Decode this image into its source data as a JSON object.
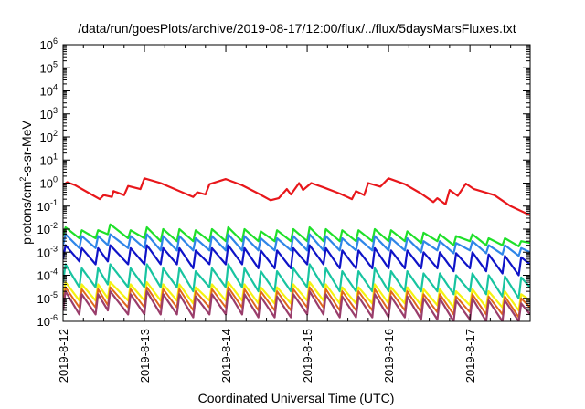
{
  "chart_data": {
    "type": "line",
    "title": "/data/run/goesPlots/archive/2019-08-17/12:00/flux/../flux/5daysMarsFluxes.txt",
    "xlabel": "Coordinated Universal Time (UTC)",
    "ylabel": {
      "base": "protons/cm",
      "sup": "2",
      "rest": "-s-sr-MeV"
    },
    "x_unit": "days since 2019-8-12 00:00 UTC",
    "xlim": [
      0,
      5.74
    ],
    "x_ticks": [
      {
        "value": 0,
        "label": "2019-8-12"
      },
      {
        "value": 1,
        "label": "2019-8-13"
      },
      {
        "value": 2,
        "label": "2019-8-14"
      },
      {
        "value": 3,
        "label": "2019-8-15"
      },
      {
        "value": 4,
        "label": "2019-8-16"
      },
      {
        "value": 5,
        "label": "2019-8-17"
      }
    ],
    "y_scale": "log",
    "ylim": [
      1e-06,
      1000000.0
    ],
    "y_ticks": [
      {
        "value": 1e-06,
        "base": "10",
        "exp": "-6"
      },
      {
        "value": 1e-05,
        "base": "10",
        "exp": "-5"
      },
      {
        "value": 0.0001,
        "base": "10",
        "exp": "-4"
      },
      {
        "value": 0.001,
        "base": "10",
        "exp": "-3"
      },
      {
        "value": 0.01,
        "base": "10",
        "exp": "-2"
      },
      {
        "value": 0.1,
        "base": "10",
        "exp": "-1"
      },
      {
        "value": 1,
        "base": "10",
        "exp": "0"
      },
      {
        "value": 10,
        "base": "10",
        "exp": "1"
      },
      {
        "value": 100,
        "base": "10",
        "exp": "2"
      },
      {
        "value": 1000,
        "base": "10",
        "exp": "3"
      },
      {
        "value": 10000,
        "base": "10",
        "exp": "4"
      },
      {
        "value": 100000,
        "base": "10",
        "exp": "5"
      },
      {
        "value": 1000000,
        "base": "10",
        "exp": "6"
      }
    ],
    "grid": false,
    "legend": "none",
    "series": [
      {
        "color": "#e8171b",
        "width": 2.2,
        "x": [
          0,
          0.05,
          0.15,
          0.3,
          0.45,
          0.5,
          0.6,
          0.62,
          0.75,
          0.8,
          0.95,
          1.0,
          1.2,
          1.4,
          1.6,
          1.65,
          1.75,
          1.8,
          2.0,
          2.2,
          2.4,
          2.55,
          2.65,
          2.75,
          2.8,
          2.9,
          2.95,
          3.05,
          3.2,
          3.4,
          3.55,
          3.6,
          3.7,
          3.75,
          3.9,
          4.0,
          4.2,
          4.4,
          4.55,
          4.6,
          4.7,
          4.75,
          4.85,
          4.95,
          5.05,
          5.3,
          5.5,
          5.74
        ],
        "y": [
          0.8,
          1.1,
          0.8,
          0.4,
          0.2,
          0.3,
          0.25,
          0.45,
          0.3,
          0.75,
          0.55,
          1.6,
          1.0,
          0.5,
          0.25,
          0.4,
          0.32,
          0.9,
          1.5,
          0.8,
          0.35,
          0.18,
          0.22,
          0.55,
          0.32,
          1.0,
          0.5,
          1.0,
          0.65,
          0.35,
          0.2,
          0.45,
          0.3,
          1.0,
          0.7,
          1.6,
          0.9,
          0.35,
          0.15,
          0.22,
          0.12,
          0.5,
          0.28,
          0.95,
          0.55,
          0.3,
          0.1,
          0.04
        ]
      },
      {
        "color": "#1fe02a",
        "width": 2.2,
        "x": [
          0,
          0.03,
          0.2,
          0.23,
          0.4,
          0.43,
          0.55,
          0.58,
          0.8,
          0.83,
          1.0,
          1.03,
          1.2,
          1.23,
          1.4,
          1.43,
          1.6,
          1.63,
          1.8,
          1.83,
          2.0,
          2.03,
          2.2,
          2.23,
          2.4,
          2.43,
          2.6,
          2.63,
          2.8,
          2.83,
          3.0,
          3.03,
          3.2,
          3.23,
          3.4,
          3.43,
          3.6,
          3.63,
          3.8,
          3.83,
          4.0,
          4.03,
          4.2,
          4.23,
          4.4,
          4.43,
          4.6,
          4.63,
          4.8,
          4.83,
          5.0,
          5.03,
          5.2,
          5.23,
          5.4,
          5.43,
          5.6,
          5.63,
          5.74
        ],
        "y": [
          0.005,
          0.012,
          0.004,
          0.009,
          0.004,
          0.009,
          0.006,
          0.016,
          0.004,
          0.009,
          0.004,
          0.012,
          0.003,
          0.01,
          0.003,
          0.01,
          0.003,
          0.009,
          0.003,
          0.01,
          0.003,
          0.012,
          0.003,
          0.01,
          0.003,
          0.008,
          0.003,
          0.009,
          0.003,
          0.01,
          0.003,
          0.012,
          0.003,
          0.01,
          0.003,
          0.009,
          0.003,
          0.009,
          0.003,
          0.01,
          0.003,
          0.009,
          0.003,
          0.008,
          0.0025,
          0.007,
          0.003,
          0.006,
          0.002,
          0.005,
          0.003,
          0.006,
          0.002,
          0.004,
          0.002,
          0.004,
          0.0018,
          0.003,
          0.0025
        ]
      },
      {
        "color": "#2f86e8",
        "width": 2.2,
        "x": [
          0,
          0.03,
          0.2,
          0.23,
          0.4,
          0.43,
          0.55,
          0.58,
          0.8,
          0.83,
          1.0,
          1.03,
          1.2,
          1.23,
          1.4,
          1.43,
          1.6,
          1.63,
          1.8,
          1.83,
          2.0,
          2.03,
          2.2,
          2.23,
          2.4,
          2.43,
          2.6,
          2.63,
          2.8,
          2.83,
          3.0,
          3.03,
          3.2,
          3.23,
          3.4,
          3.43,
          3.6,
          3.63,
          3.8,
          3.83,
          4.0,
          4.03,
          4.2,
          4.23,
          4.4,
          4.43,
          4.6,
          4.63,
          4.8,
          4.83,
          5.0,
          5.03,
          5.2,
          5.23,
          5.4,
          5.43,
          5.6,
          5.63,
          5.74
        ],
        "y": [
          0.002,
          0.006,
          0.0015,
          0.005,
          0.0015,
          0.005,
          0.002,
          0.006,
          0.0015,
          0.005,
          0.0015,
          0.006,
          0.0012,
          0.005,
          0.0012,
          0.005,
          0.0012,
          0.004,
          0.0012,
          0.005,
          0.0012,
          0.006,
          0.0012,
          0.005,
          0.0012,
          0.004,
          0.0012,
          0.004,
          0.0012,
          0.005,
          0.0012,
          0.006,
          0.0012,
          0.005,
          0.0012,
          0.004,
          0.0012,
          0.004,
          0.0012,
          0.005,
          0.0012,
          0.004,
          0.0012,
          0.004,
          0.001,
          0.003,
          0.0012,
          0.003,
          0.0009,
          0.0025,
          0.0012,
          0.003,
          0.0009,
          0.002,
          0.0008,
          0.002,
          0.0007,
          0.0015,
          0.001
        ]
      },
      {
        "color": "#0f13c8",
        "width": 2.2,
        "x": [
          0,
          0.03,
          0.2,
          0.23,
          0.4,
          0.43,
          0.55,
          0.58,
          0.8,
          0.83,
          1.0,
          1.03,
          1.2,
          1.23,
          1.4,
          1.43,
          1.6,
          1.63,
          1.8,
          1.83,
          2.0,
          2.03,
          2.2,
          2.23,
          2.4,
          2.43,
          2.6,
          2.63,
          2.8,
          2.83,
          3.0,
          3.03,
          3.2,
          3.23,
          3.4,
          3.43,
          3.6,
          3.63,
          3.8,
          3.83,
          4.0,
          4.03,
          4.2,
          4.23,
          4.4,
          4.43,
          4.6,
          4.63,
          4.8,
          4.83,
          5.0,
          5.03,
          5.2,
          5.23,
          5.4,
          5.43,
          5.6,
          5.63,
          5.74
        ],
        "y": [
          0.0005,
          0.002,
          0.0004,
          0.0015,
          0.0003,
          0.0015,
          0.0004,
          0.002,
          0.0003,
          0.0015,
          0.0003,
          0.002,
          0.0003,
          0.0015,
          0.0003,
          0.0015,
          0.0002,
          0.0012,
          0.0003,
          0.0015,
          0.0003,
          0.002,
          0.0003,
          0.0015,
          0.0002,
          0.0012,
          0.0002,
          0.0012,
          0.0002,
          0.0015,
          0.0003,
          0.002,
          0.0003,
          0.0015,
          0.0002,
          0.0012,
          0.0002,
          0.0012,
          0.0002,
          0.0015,
          0.0002,
          0.0012,
          0.0002,
          0.0012,
          0.0002,
          0.001,
          0.0002,
          0.001,
          0.00015,
          0.0009,
          0.0002,
          0.001,
          0.00015,
          0.0008,
          0.00012,
          0.0007,
          0.0001,
          0.0006,
          0.0003
        ]
      },
      {
        "color": "#18c4a0",
        "width": 2.2,
        "x": [
          0,
          0.03,
          0.2,
          0.23,
          0.4,
          0.43,
          0.55,
          0.58,
          0.8,
          0.83,
          1.0,
          1.03,
          1.2,
          1.23,
          1.4,
          1.43,
          1.6,
          1.63,
          1.8,
          1.83,
          2.0,
          2.03,
          2.2,
          2.23,
          2.4,
          2.43,
          2.6,
          2.63,
          2.8,
          2.83,
          3.0,
          3.03,
          3.2,
          3.23,
          3.4,
          3.43,
          3.6,
          3.63,
          3.8,
          3.83,
          4.0,
          4.03,
          4.2,
          4.23,
          4.4,
          4.43,
          4.6,
          4.63,
          4.8,
          4.83,
          5.0,
          5.03,
          5.2,
          5.23,
          5.4,
          5.43,
          5.6,
          5.63,
          5.74
        ],
        "y": [
          5e-05,
          0.0003,
          3e-05,
          0.0002,
          3e-05,
          0.0002,
          4e-05,
          0.0003,
          3e-05,
          0.0002,
          3e-05,
          0.0003,
          3e-05,
          0.0002,
          3e-05,
          0.0002,
          2e-05,
          0.00015,
          3e-05,
          0.0002,
          3e-05,
          0.0003,
          3e-05,
          0.0002,
          2e-05,
          0.00015,
          2e-05,
          0.00015,
          2e-05,
          0.0002,
          3e-05,
          0.0003,
          3e-05,
          0.0002,
          2e-05,
          0.00015,
          2e-05,
          0.00015,
          2e-05,
          0.0002,
          2e-05,
          0.00015,
          2e-05,
          0.00015,
          2e-05,
          0.00012,
          2e-05,
          0.00012,
          1.5e-05,
          0.0001,
          2e-05,
          0.00012,
          1.5e-05,
          0.0001,
          1.2e-05,
          9e-05,
          1e-05,
          8e-05,
          3e-05
        ]
      },
      {
        "color": "#f5f210",
        "width": 2.2,
        "x": [
          0,
          0.03,
          0.2,
          0.23,
          0.4,
          0.43,
          0.55,
          0.58,
          0.8,
          0.83,
          1.0,
          1.03,
          1.2,
          1.23,
          1.4,
          1.43,
          1.6,
          1.63,
          1.8,
          1.83,
          2.0,
          2.03,
          2.2,
          2.23,
          2.4,
          2.43,
          2.6,
          2.63,
          2.8,
          2.83,
          3.0,
          3.03,
          3.2,
          3.23,
          3.4,
          3.43,
          3.6,
          3.63,
          3.8,
          3.83,
          4.0,
          4.03,
          4.2,
          4.23,
          4.4,
          4.43,
          4.6,
          4.63,
          4.8,
          4.83,
          5.0,
          5.03,
          5.2,
          5.23,
          5.4,
          5.43,
          5.6,
          5.63,
          5.74
        ],
        "y": [
          1e-05,
          5e-05,
          8e-06,
          4e-05,
          8e-06,
          4e-05,
          1e-05,
          5e-05,
          8e-06,
          4e-05,
          8e-06,
          5e-05,
          8e-06,
          4e-05,
          8e-06,
          4e-05,
          6e-06,
          3e-05,
          8e-06,
          4e-05,
          8e-06,
          5e-05,
          8e-06,
          4e-05,
          6e-06,
          3e-05,
          6e-06,
          3e-05,
          6e-06,
          4e-05,
          8e-06,
          5e-05,
          8e-06,
          4e-05,
          6e-06,
          3e-05,
          6e-06,
          3e-05,
          6e-06,
          4e-05,
          6e-06,
          3e-05,
          6e-06,
          3e-05,
          5e-06,
          2.5e-05,
          5e-06,
          2.5e-05,
          4e-06,
          2e-05,
          5e-06,
          2.5e-05,
          4e-06,
          2e-05,
          4e-06,
          2e-05,
          3e-06,
          1.5e-05,
          8e-06
        ]
      },
      {
        "color": "#e0671c",
        "width": 2.0,
        "x": [
          0,
          0.03,
          0.2,
          0.23,
          0.4,
          0.43,
          0.55,
          0.58,
          0.8,
          0.83,
          1.0,
          1.03,
          1.2,
          1.23,
          1.4,
          1.43,
          1.6,
          1.63,
          1.8,
          1.83,
          2.0,
          2.03,
          2.2,
          2.23,
          2.4,
          2.43,
          2.6,
          2.63,
          2.8,
          2.83,
          3.0,
          3.03,
          3.2,
          3.23,
          3.4,
          3.43,
          3.6,
          3.63,
          3.8,
          3.83,
          4.0,
          4.03,
          4.2,
          4.23,
          4.4,
          4.43,
          4.6,
          4.63,
          4.8,
          4.83,
          5.0,
          5.03,
          5.2,
          5.23,
          5.4,
          5.43,
          5.6,
          5.63,
          5.74
        ],
        "y": [
          5e-06,
          3e-05,
          4e-06,
          2.5e-05,
          4e-06,
          2.5e-05,
          5e-06,
          3e-05,
          4e-06,
          2.5e-05,
          4e-06,
          3e-05,
          4e-06,
          2.5e-05,
          4e-06,
          2.5e-05,
          3e-06,
          2e-05,
          4e-06,
          2.5e-05,
          4e-06,
          3e-05,
          4e-06,
          2.5e-05,
          3e-06,
          2e-05,
          3e-06,
          2e-05,
          3e-06,
          2.5e-05,
          4e-06,
          3e-05,
          4e-06,
          2.5e-05,
          3e-06,
          2e-05,
          3e-06,
          2e-05,
          3e-06,
          2.5e-05,
          3e-06,
          2e-05,
          3e-06,
          2e-05,
          2.5e-06,
          1.5e-05,
          2.5e-06,
          1.5e-05,
          2e-06,
          1.2e-05,
          2.5e-06,
          1.5e-05,
          2e-06,
          1.2e-05,
          2e-06,
          1.2e-05,
          1.5e-06,
          1e-05,
          4e-06
        ]
      },
      {
        "color": "#9a3d6b",
        "width": 2.2,
        "x": [
          0,
          0.03,
          0.2,
          0.23,
          0.4,
          0.43,
          0.55,
          0.58,
          0.8,
          0.83,
          1.0,
          1.03,
          1.2,
          1.23,
          1.4,
          1.43,
          1.6,
          1.63,
          1.8,
          1.83,
          2.0,
          2.03,
          2.2,
          2.23,
          2.4,
          2.43,
          2.6,
          2.63,
          2.8,
          2.83,
          3.0,
          3.03,
          3.2,
          3.23,
          3.4,
          3.43,
          3.6,
          3.63,
          3.8,
          3.83,
          4.0,
          4.03,
          4.2,
          4.23,
          4.4,
          4.43,
          4.6,
          4.63,
          4.8,
          4.83,
          5.0,
          5.03,
          5.2,
          5.23,
          5.4,
          5.43,
          5.6,
          5.63,
          5.74
        ],
        "y": [
          3e-06,
          2e-05,
          2e-06,
          1.5e-05,
          2e-06,
          1.5e-05,
          3e-06,
          2e-05,
          2e-06,
          1.5e-05,
          2e-06,
          2e-05,
          2e-06,
          1.5e-05,
          2e-06,
          1.5e-05,
          1.5e-06,
          1.2e-05,
          2e-06,
          1.5e-05,
          2e-06,
          2e-05,
          2e-06,
          1.5e-05,
          1.5e-06,
          1.2e-05,
          1.5e-06,
          1.2e-05,
          1.5e-06,
          1.5e-05,
          2e-06,
          2e-05,
          2e-06,
          1.5e-05,
          1.5e-06,
          1.2e-05,
          1.5e-06,
          1.2e-05,
          1.5e-06,
          1.5e-05,
          1.5e-06,
          1.2e-05,
          1.5e-06,
          1.2e-05,
          1.2e-06,
          1e-05,
          1.2e-06,
          1e-05,
          1e-06,
          8e-06,
          1.2e-06,
          1e-05,
          1e-06,
          8e-06,
          1e-06,
          8e-06,
          1e-06,
          6e-06,
          2e-06
        ]
      }
    ]
  }
}
